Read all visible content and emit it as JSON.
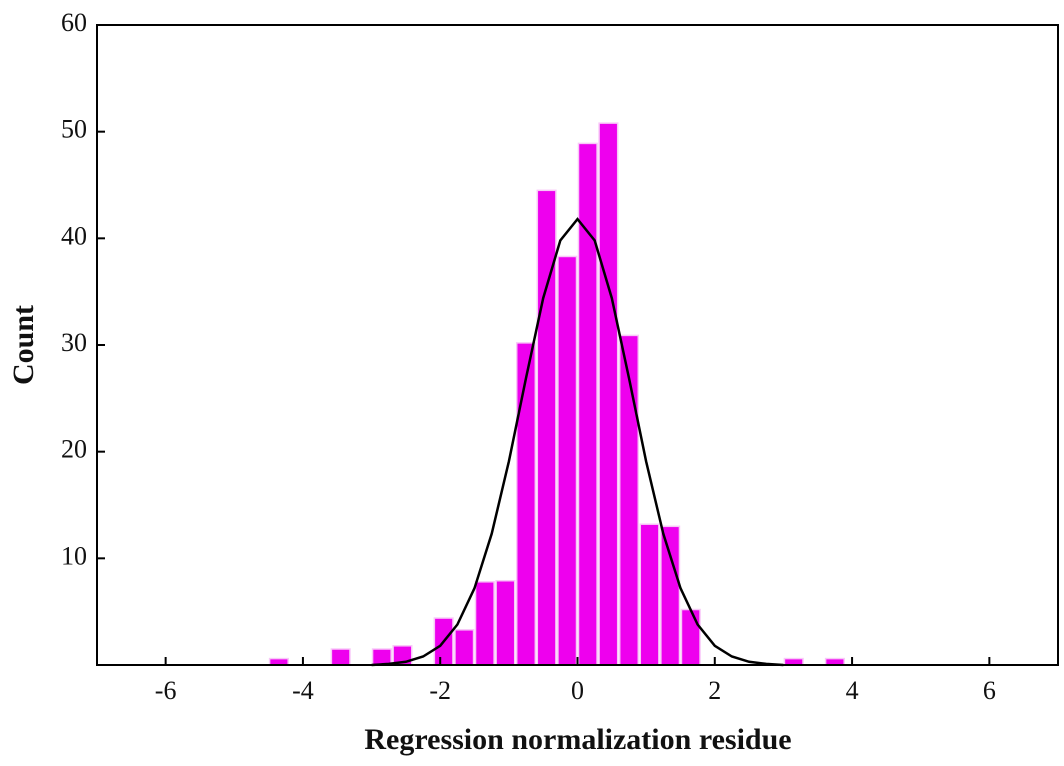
{
  "chart_data": {
    "type": "histogram",
    "xlabel": "Regression normalization residue",
    "ylabel": "Count",
    "bins": [
      -4.5,
      -4.2,
      -3.9,
      -3.6,
      -3.3,
      -3.0,
      -2.7,
      -2.4,
      -2.1,
      -1.8,
      -1.5,
      -1.2,
      -0.9,
      -0.6,
      -0.3,
      0,
      0.3,
      0.6,
      0.9,
      1.2,
      1.5,
      1.8,
      2.1,
      2.4,
      2.7,
      3.0,
      3.3,
      3.6,
      3.9
    ],
    "values": [
      0.6,
      0,
      0,
      1.5,
      0,
      1.5,
      1.8,
      0,
      4.4,
      3.3,
      7.8,
      7.9,
      30.2,
      44.5,
      38.3,
      48.9,
      50.8,
      30.9,
      13.2,
      13,
      5.2,
      0,
      0,
      0,
      0,
      0.6,
      0,
      0.6
    ],
    "color": "#ee00ee",
    "curve": {
      "color": "#000000",
      "x": [
        -3,
        -2.75,
        -2.5,
        -2.25,
        -2,
        -1.75,
        -1.5,
        -1.25,
        -1,
        -0.75,
        -0.5,
        -0.25,
        0,
        0.25,
        0.5,
        0.75,
        1,
        1.25,
        1.5,
        1.75,
        2,
        2.25,
        2.5,
        2.75,
        3
      ],
      "values": [
        0,
        0.1,
        0.3,
        0.8,
        1.8,
        3.8,
        7.2,
        12.3,
        19.1,
        26.9,
        34.4,
        39.8,
        41.8,
        39.8,
        34.4,
        26.9,
        19.1,
        12.3,
        7.2,
        3.8,
        1.8,
        0.8,
        0.3,
        0.1,
        0
      ]
    },
    "xlim": [
      -7,
      7
    ],
    "xticks": [
      -6,
      -4,
      -2,
      0,
      2,
      4,
      6
    ],
    "ylim": [
      0,
      60
    ],
    "yticks": [
      10,
      20,
      30,
      40,
      50,
      60
    ]
  }
}
